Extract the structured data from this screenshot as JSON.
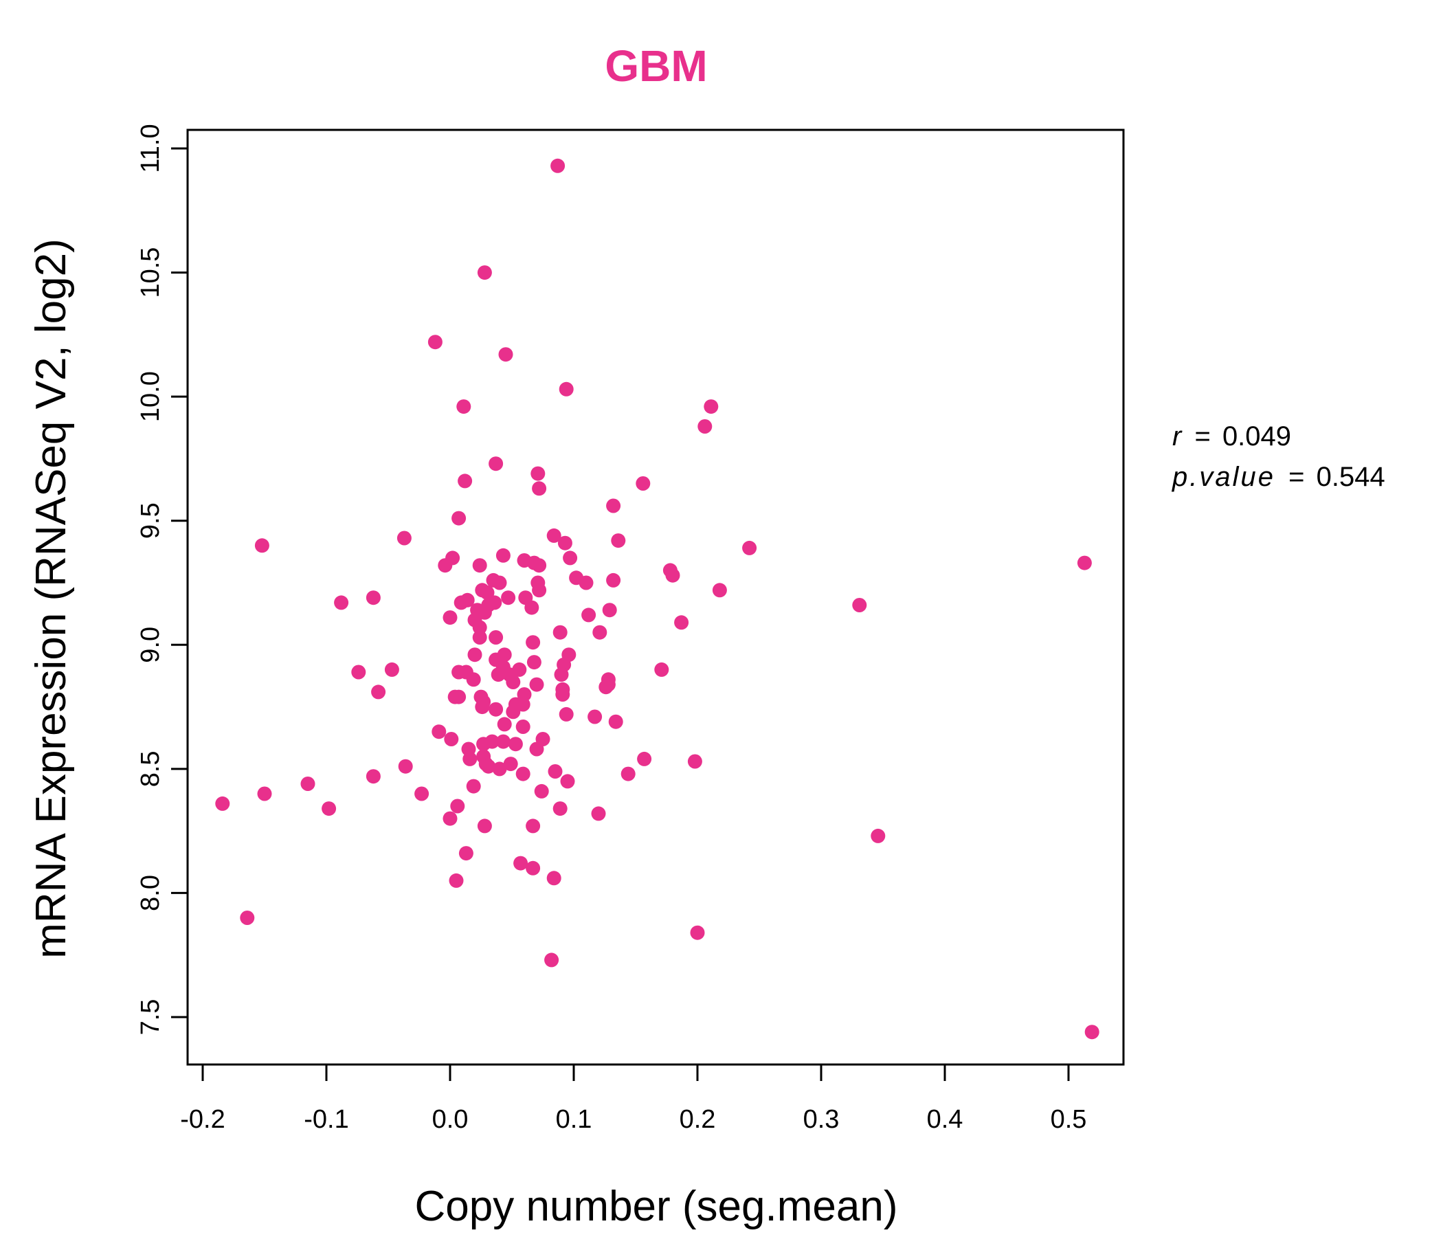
{
  "chart_data": {
    "type": "scatter",
    "title": "GBM",
    "xlabel": "Copy number (seg.mean)",
    "ylabel": "mRNA Expression (RNASeq V2, log2)",
    "xlim": [
      -0.2,
      0.55
    ],
    "ylim": [
      7.4,
      11.1
    ],
    "x_ticks": [
      "-0.2",
      "-0.1",
      "0.0",
      "0.1",
      "0.2",
      "0.3",
      "0.4",
      "0.5"
    ],
    "y_ticks": [
      "7.5",
      "8.0",
      "8.5",
      "9.0",
      "9.5",
      "10.0",
      "10.5",
      "11.0"
    ],
    "grid": false,
    "point_color": "#e8308c",
    "annotations": {
      "r_label": "r",
      "r_value": "0.049",
      "p_label": "p.value",
      "p_value": "0.544"
    },
    "points": [
      [
        0.087,
        10.93
      ],
      [
        0.028,
        10.5
      ],
      [
        -0.012,
        10.22
      ],
      [
        0.045,
        10.17
      ],
      [
        0.094,
        10.03
      ],
      [
        0.011,
        9.96
      ],
      [
        0.211,
        9.96
      ],
      [
        0.206,
        9.88
      ],
      [
        0.037,
        9.73
      ],
      [
        0.071,
        9.69
      ],
      [
        0.012,
        9.66
      ],
      [
        0.156,
        9.65
      ],
      [
        0.072,
        9.63
      ],
      [
        0.132,
        9.56
      ],
      [
        0.007,
        9.51
      ],
      [
        0.084,
        9.44
      ],
      [
        -0.037,
        9.43
      ],
      [
        0.136,
        9.42
      ],
      [
        0.093,
        9.41
      ],
      [
        -0.152,
        9.4
      ],
      [
        0.242,
        9.39
      ],
      [
        0.043,
        9.36
      ],
      [
        0.097,
        9.35
      ],
      [
        0.002,
        9.35
      ],
      [
        0.06,
        9.34
      ],
      [
        0.513,
        9.33
      ],
      [
        -0.004,
        9.32
      ],
      [
        0.024,
        9.32
      ],
      [
        0.068,
        9.33
      ],
      [
        0.072,
        9.32
      ],
      [
        0.178,
        9.3
      ],
      [
        0.18,
        9.28
      ],
      [
        0.102,
        9.27
      ],
      [
        0.035,
        9.26
      ],
      [
        0.11,
        9.25
      ],
      [
        0.132,
        9.26
      ],
      [
        0.04,
        9.25
      ],
      [
        0.071,
        9.25
      ],
      [
        0.072,
        9.22
      ],
      [
        0.026,
        9.22
      ],
      [
        0.218,
        9.22
      ],
      [
        0.03,
        9.21
      ],
      [
        0.061,
        9.19
      ],
      [
        -0.062,
        9.19
      ],
      [
        0.047,
        9.19
      ],
      [
        0.014,
        9.18
      ],
      [
        0.009,
        9.17
      ],
      [
        0.036,
        9.17
      ],
      [
        -0.088,
        9.17
      ],
      [
        0.331,
        9.16
      ],
      [
        0.031,
        9.16
      ],
      [
        0.066,
        9.15
      ],
      [
        0.022,
        9.14
      ],
      [
        0.129,
        9.14
      ],
      [
        0.028,
        9.13
      ],
      [
        0.112,
        9.12
      ],
      [
        0.0,
        9.11
      ],
      [
        0.02,
        9.1
      ],
      [
        0.187,
        9.09
      ],
      [
        0.024,
        9.07
      ],
      [
        0.089,
        9.05
      ],
      [
        0.121,
        9.05
      ],
      [
        0.024,
        9.03
      ],
      [
        0.037,
        9.03
      ],
      [
        0.067,
        9.01
      ],
      [
        0.02,
        8.96
      ],
      [
        0.044,
        8.96
      ],
      [
        0.096,
        8.96
      ],
      [
        0.037,
        8.94
      ],
      [
        0.068,
        8.93
      ],
      [
        0.092,
        8.92
      ],
      [
        0.043,
        8.91
      ],
      [
        0.056,
        8.9
      ],
      [
        0.171,
        8.9
      ],
      [
        -0.047,
        8.9
      ],
      [
        0.007,
        8.89
      ],
      [
        0.013,
        8.89
      ],
      [
        -0.074,
        8.89
      ],
      [
        0.048,
        8.88
      ],
      [
        0.09,
        8.88
      ],
      [
        0.039,
        8.88
      ],
      [
        0.019,
        8.86
      ],
      [
        0.128,
        8.86
      ],
      [
        0.051,
        8.85
      ],
      [
        0.128,
        8.84
      ],
      [
        0.07,
        8.84
      ],
      [
        0.126,
        8.83
      ],
      [
        0.091,
        8.82
      ],
      [
        -0.058,
        8.81
      ],
      [
        0.091,
        8.8
      ],
      [
        0.025,
        8.79
      ],
      [
        0.06,
        8.8
      ],
      [
        0.004,
        8.79
      ],
      [
        0.007,
        8.79
      ],
      [
        0.027,
        8.77
      ],
      [
        0.053,
        8.76
      ],
      [
        0.059,
        8.76
      ],
      [
        0.026,
        8.75
      ],
      [
        0.037,
        8.74
      ],
      [
        0.051,
        8.73
      ],
      [
        0.094,
        8.72
      ],
      [
        0.117,
        8.71
      ],
      [
        0.134,
        8.69
      ],
      [
        0.044,
        8.68
      ],
      [
        0.059,
        8.67
      ],
      [
        -0.009,
        8.65
      ],
      [
        0.001,
        8.62
      ],
      [
        0.075,
        8.62
      ],
      [
        0.034,
        8.61
      ],
      [
        0.043,
        8.61
      ],
      [
        0.027,
        8.6
      ],
      [
        0.053,
        8.6
      ],
      [
        0.015,
        8.58
      ],
      [
        0.07,
        8.58
      ],
      [
        0.027,
        8.55
      ],
      [
        0.016,
        8.54
      ],
      [
        0.157,
        8.54
      ],
      [
        0.198,
        8.53
      ],
      [
        0.029,
        8.52
      ],
      [
        0.049,
        8.52
      ],
      [
        0.031,
        8.51
      ],
      [
        0.04,
        8.5
      ],
      [
        -0.036,
        8.51
      ],
      [
        0.085,
        8.49
      ],
      [
        0.059,
        8.48
      ],
      [
        0.144,
        8.48
      ],
      [
        -0.062,
        8.47
      ],
      [
        0.095,
        8.45
      ],
      [
        -0.115,
        8.44
      ],
      [
        0.019,
        8.43
      ],
      [
        0.074,
        8.41
      ],
      [
        -0.15,
        8.4
      ],
      [
        -0.023,
        8.4
      ],
      [
        -0.184,
        8.36
      ],
      [
        0.006,
        8.35
      ],
      [
        0.089,
        8.34
      ],
      [
        -0.098,
        8.34
      ],
      [
        0.12,
        8.32
      ],
      [
        0.0,
        8.3
      ],
      [
        0.028,
        8.27
      ],
      [
        0.067,
        8.27
      ],
      [
        0.346,
        8.23
      ],
      [
        0.013,
        8.16
      ],
      [
        0.057,
        8.12
      ],
      [
        0.067,
        8.1
      ],
      [
        0.084,
        8.06
      ],
      [
        0.005,
        8.05
      ],
      [
        -0.164,
        7.9
      ],
      [
        0.2,
        7.84
      ],
      [
        0.082,
        7.73
      ],
      [
        0.519,
        7.44
      ]
    ]
  }
}
